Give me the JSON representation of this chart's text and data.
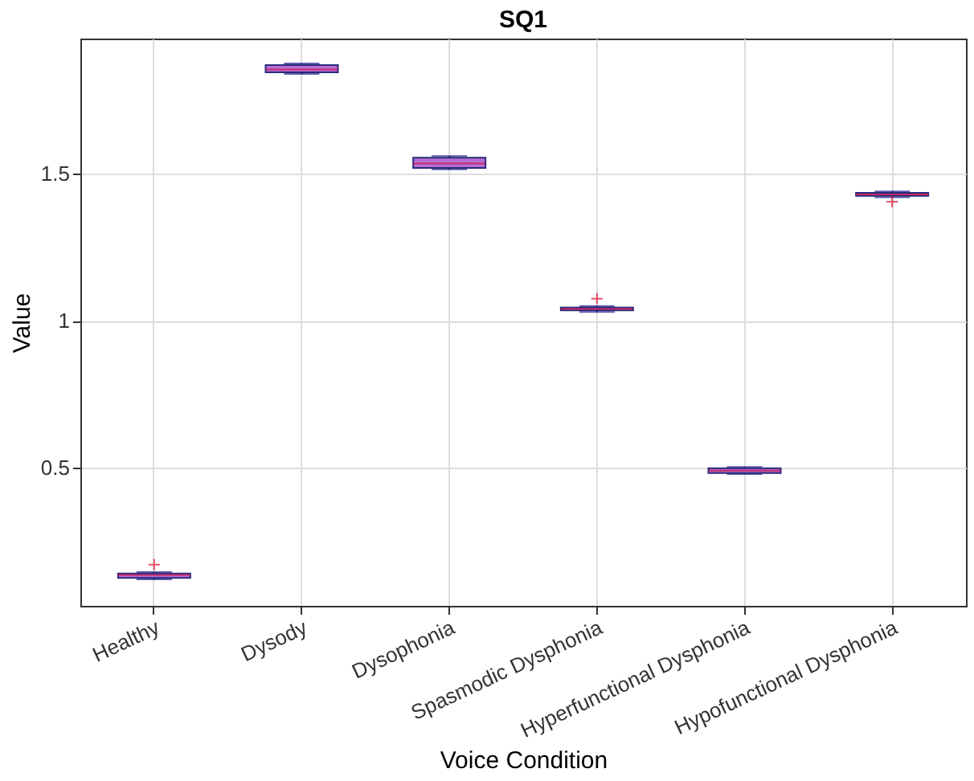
{
  "chart_data": {
    "type": "box",
    "title": "SQ1",
    "xlabel": "Voice Condition",
    "ylabel": "Value",
    "categories": [
      "Healthy",
      "Dysody",
      "Dysophonia",
      "Spasmodic Dysphonia",
      "Hyperfunctional Dysphonia",
      "Hypofunctional Dysphonia"
    ],
    "series": [
      {
        "color": "#b46fd6",
        "boxes": [
          {
            "low": 0.12,
            "q1": 0.125,
            "median": 0.135,
            "q3": 0.14,
            "high": 0.145,
            "outliers": [
              0.17
            ]
          },
          {
            "low": 1.84,
            "q1": 1.845,
            "median": 1.855,
            "q3": 1.87,
            "high": 1.875
          },
          {
            "low": 1.515,
            "q1": 1.52,
            "median": 1.535,
            "q3": 1.555,
            "high": 1.56
          },
          {
            "low": 1.03,
            "q1": 1.035,
            "median": 1.04,
            "q3": 1.045,
            "high": 1.05,
            "outliers": [
              1.075
            ]
          },
          {
            "low": 0.478,
            "q1": 0.482,
            "median": 0.49,
            "q3": 0.498,
            "high": 0.502
          },
          {
            "low": 1.42,
            "q1": 1.425,
            "median": 1.43,
            "q3": 1.435,
            "high": 1.44,
            "outliers": [
              1.405
            ]
          }
        ]
      }
    ],
    "ylim": [
      0.03,
      1.96
    ],
    "yticks": [
      {
        "value": 0.5,
        "label": "0.5"
      },
      {
        "value": 1,
        "label": "1"
      },
      {
        "value": 1.5,
        "label": "1.5"
      }
    ],
    "grid": true,
    "marker": "cross"
  }
}
